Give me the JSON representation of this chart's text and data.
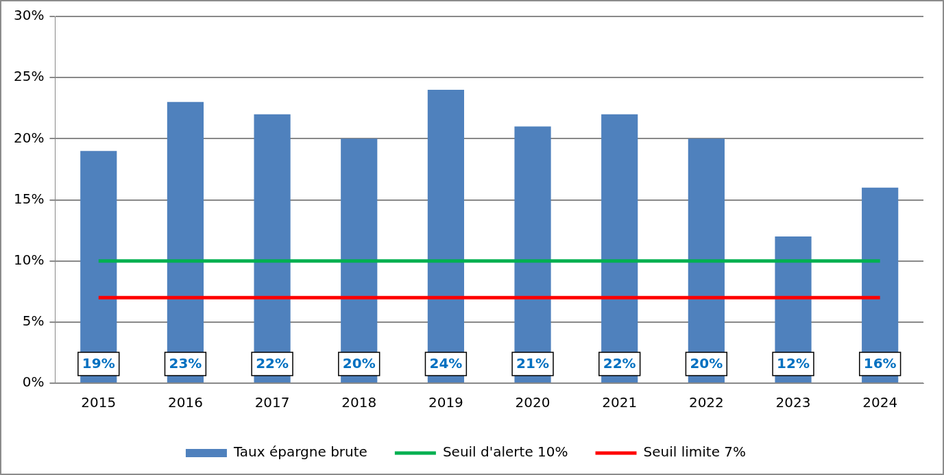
{
  "chart_data": {
    "type": "bar",
    "categories": [
      "2015",
      "2016",
      "2017",
      "2018",
      "2019",
      "2020",
      "2021",
      "2022",
      "2023",
      "2024"
    ],
    "series": [
      {
        "name": "Taux épargne brute",
        "color": "#4f81bd",
        "values": [
          19,
          23,
          22,
          20,
          24,
          21,
          22,
          20,
          12,
          16
        ],
        "value_labels": [
          "19%",
          "23%",
          "22%",
          "20%",
          "24%",
          "21%",
          "22%",
          "20%",
          "12%",
          "16%"
        ]
      },
      {
        "name": "Seuil d'alerte 10%",
        "type": "line",
        "color": "#00b050",
        "values": [
          10,
          10,
          10,
          10,
          10,
          10,
          10,
          10,
          10,
          10
        ]
      },
      {
        "name": "Seuil limite 7%",
        "type": "line",
        "color": "#ff0000",
        "values": [
          7,
          7,
          7,
          7,
          7,
          7,
          7,
          7,
          7,
          7
        ]
      }
    ],
    "ylim": [
      0,
      30
    ],
    "yticks": [
      {
        "value": 0,
        "label": "0%"
      },
      {
        "value": 5,
        "label": "5%"
      },
      {
        "value": 10,
        "label": "10%"
      },
      {
        "value": 15,
        "label": "15%"
      },
      {
        "value": 20,
        "label": "20%"
      },
      {
        "value": 25,
        "label": "25%"
      },
      {
        "value": 30,
        "label": "30%"
      }
    ],
    "grid": "y",
    "legend": "bottom",
    "marker": "none"
  }
}
